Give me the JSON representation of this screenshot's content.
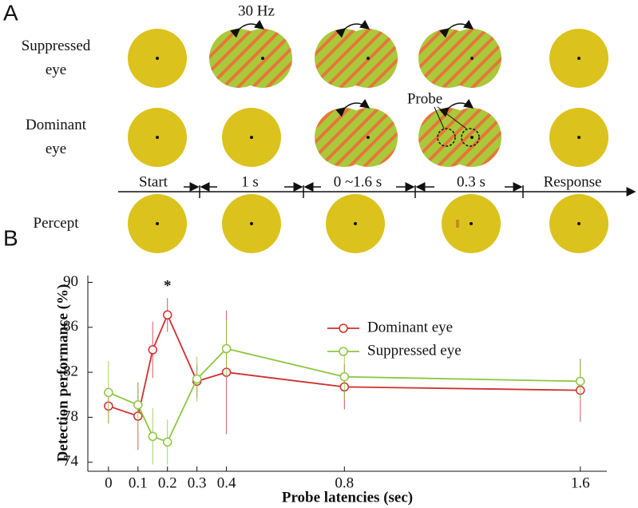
{
  "panel_labels": [
    "A",
    "B"
  ],
  "diagram": {
    "rows": [
      "Suppressed eye",
      "Dominant eye",
      "Percept"
    ],
    "frequency_label": "30 Hz",
    "probe_label": "Probe",
    "timeline": [
      "Start",
      "1 s",
      "0 ~1.6 s",
      "0.3 s",
      "Response"
    ]
  },
  "chart_data": {
    "type": "line",
    "x_label": "Probe latencies (sec)",
    "y_label": "Detection performance (%)",
    "x": [
      0,
      0.1,
      0.15,
      0.2,
      0.3,
      0.4,
      0.8,
      1.6
    ],
    "series": [
      {
        "name": "Dominant eye",
        "color": "#cf2f2f",
        "values": [
          79.0,
          78.1,
          84.0,
          87.1,
          81.2,
          82.0,
          80.7,
          80.4
        ],
        "errors": [
          1.5,
          3.0,
          2.5,
          1.5,
          1.5,
          5.5,
          2.0,
          2.8
        ]
      },
      {
        "name": "Suppressed eye",
        "color": "#8dc63f",
        "values": [
          80.2,
          79.1,
          76.3,
          75.8,
          81.4,
          84.1,
          81.6,
          81.2
        ],
        "errors": [
          2.8,
          2.0,
          2.5,
          2.0,
          2.0,
          2.5,
          2.0,
          1.8
        ]
      }
    ],
    "annotation": "*",
    "xlim": [
      -0.07,
      1.69
    ],
    "xticks": [
      0,
      0.1,
      0.2,
      0.3,
      0.4,
      0.8,
      1.6
    ],
    "ylim": [
      73.2,
      90.6
    ],
    "yticks": [
      74,
      78,
      82,
      86,
      90
    ],
    "legend": "upper right"
  }
}
